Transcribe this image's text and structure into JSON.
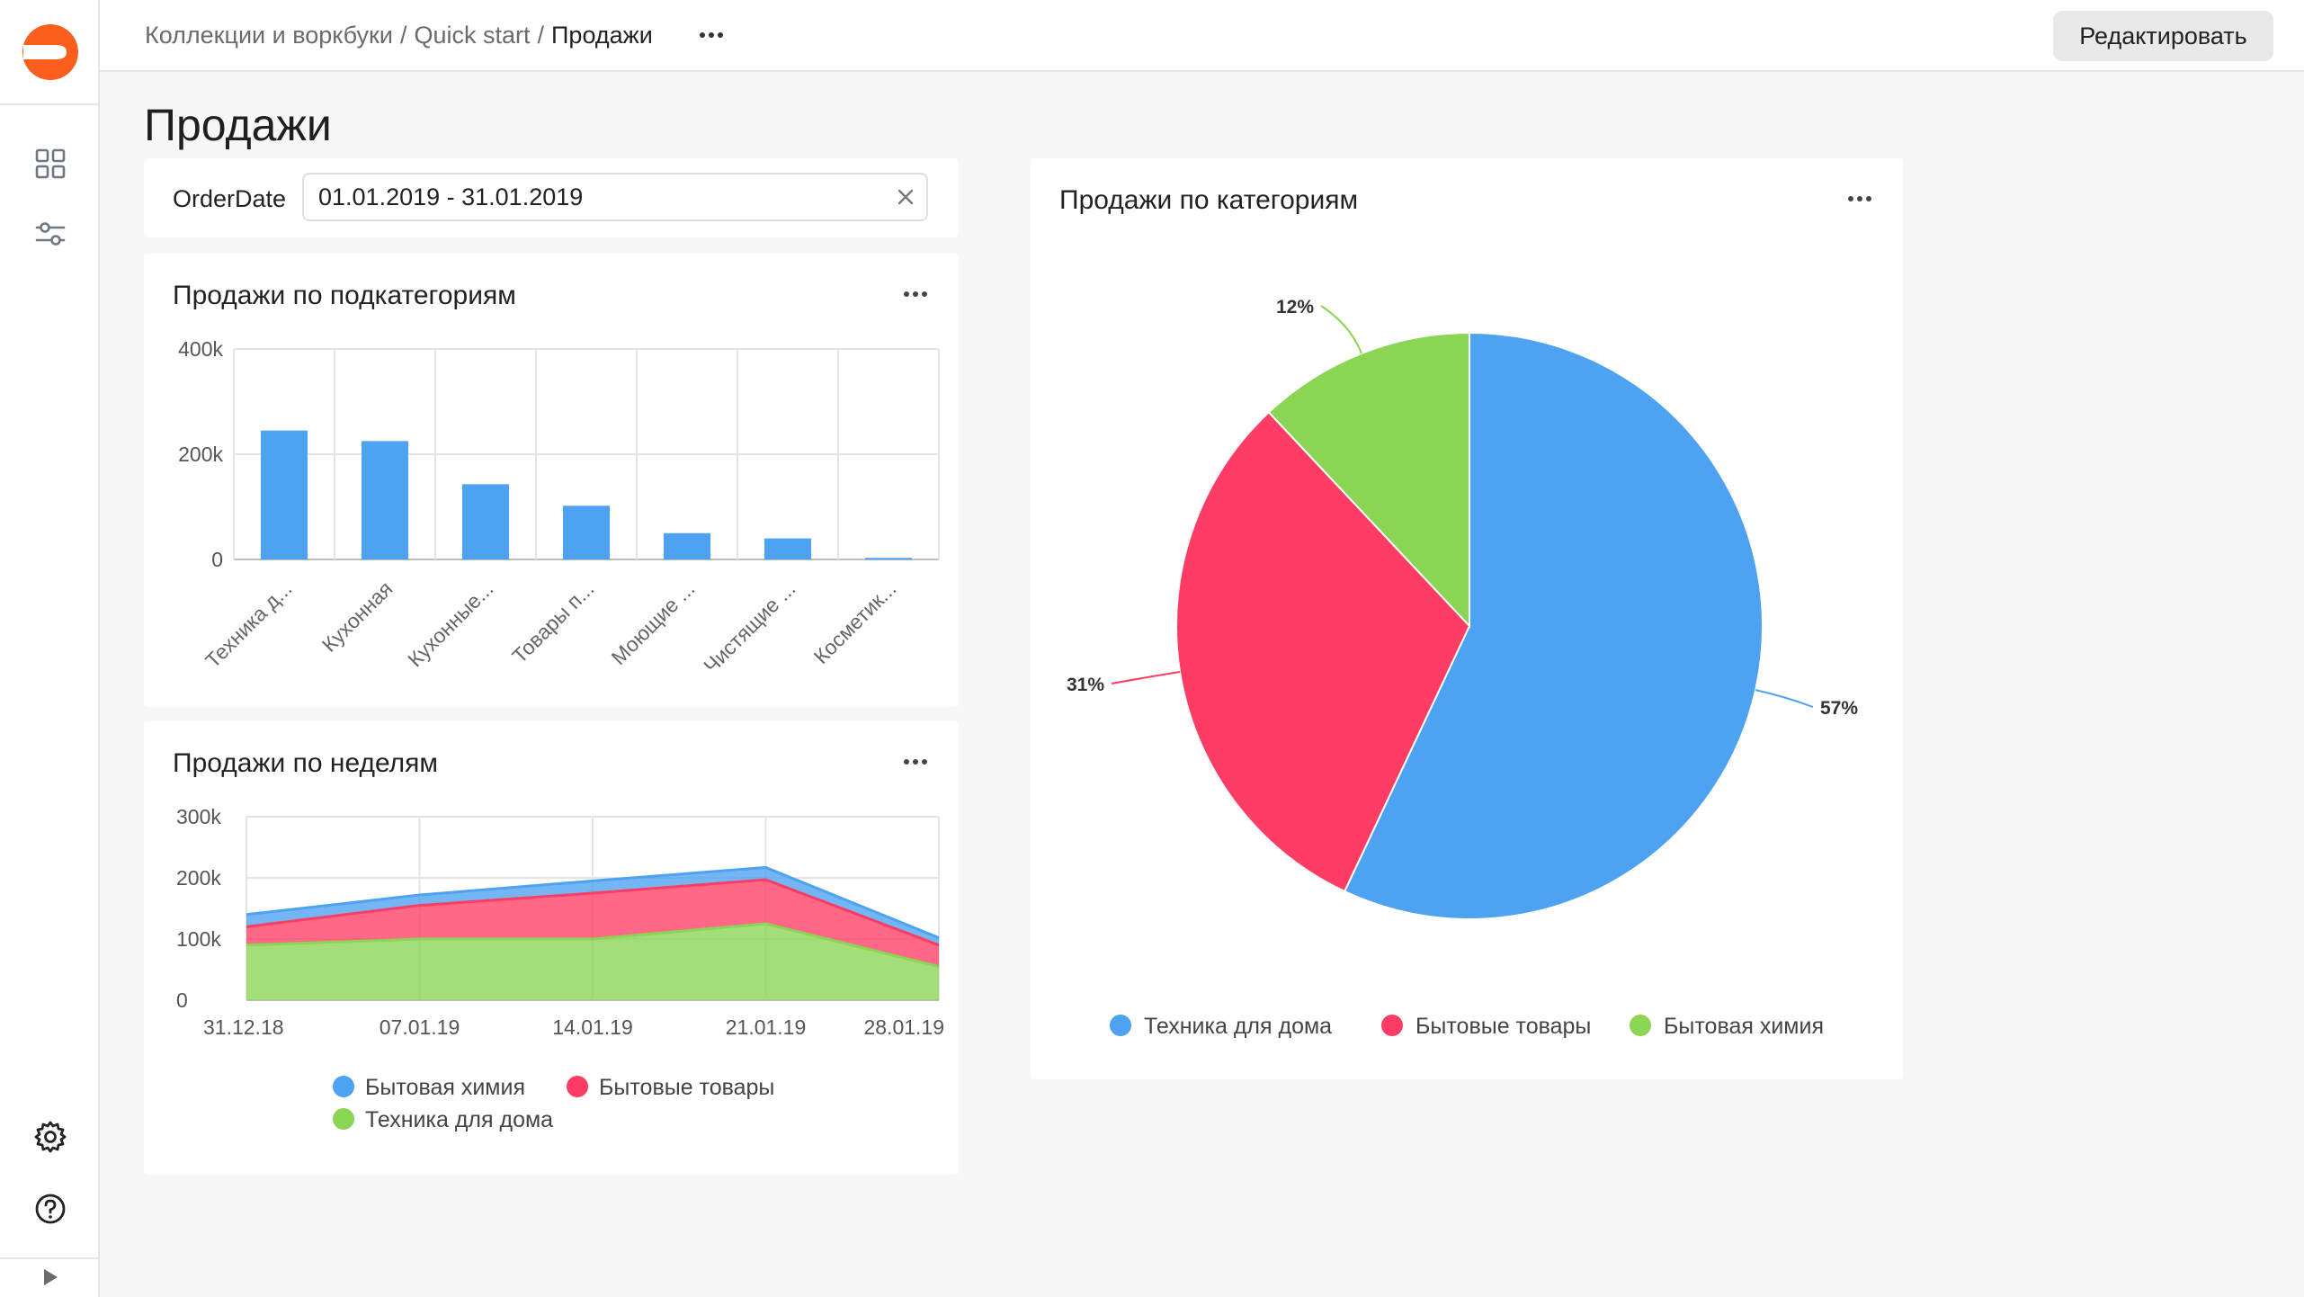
{
  "breadcrumb": {
    "items": [
      "Коллекции и воркбуки",
      "Quick start"
    ],
    "current": "Продажи"
  },
  "header": {
    "edit_label": "Редактировать"
  },
  "page": {
    "title": "Продажи"
  },
  "filter": {
    "label": "OrderDate",
    "value": "01.01.2019 - 31.01.2019"
  },
  "icons": {
    "logo": "datalens-logo",
    "dashboards": "grid-icon",
    "connections": "sliders-icon",
    "settings": "gear-icon",
    "help": "help-icon",
    "collapse": "play-icon",
    "menu": "ellipsis-icon",
    "clear": "close-icon"
  },
  "colors": {
    "blue": "#4da2f1",
    "red": "#ff3d64",
    "green": "#8ad554",
    "logo": "#fc5e1e"
  },
  "charts": {
    "subcategories": {
      "title": "Продажи по подкатегориям",
      "chart_data": {
        "type": "bar",
        "categories": [
          "Техника д...",
          "Кухонная",
          "Кухонные...",
          "Товары п...",
          "Моющие ...",
          "Чистящие ...",
          "Косметик..."
        ],
        "values": [
          245000,
          225000,
          143000,
          102000,
          50000,
          40000,
          3000
        ],
        "ylim": [
          0,
          400000
        ],
        "yticks": [
          "0",
          "200k",
          "400k"
        ],
        "colors": [
          "#4da2f1"
        ],
        "grid": true
      }
    },
    "weeks": {
      "title": "Продажи по неделям",
      "chart_data": {
        "type": "area",
        "stacked": true,
        "x": [
          "31.12.18",
          "07.01.19",
          "14.01.19",
          "21.01.19",
          "28.01.19"
        ],
        "series": [
          {
            "name": "Техника для дома",
            "color": "#8ad554",
            "values": [
              90000,
              100000,
              100000,
              125000,
              55000
            ]
          },
          {
            "name": "Бытовые товары",
            "color": "#ff3d64",
            "values": [
              30000,
              55000,
              75000,
              72000,
              35000
            ]
          },
          {
            "name": "Бытовая химия",
            "color": "#4da2f1",
            "values": [
              20000,
              17000,
              20000,
              20000,
              12000
            ]
          }
        ],
        "legend_order": [
          "Бытовая химия",
          "Бытовые товары",
          "Техника для дома"
        ],
        "ylim": [
          0,
          300000
        ],
        "yticks": [
          "0",
          "100k",
          "200k",
          "300k"
        ],
        "legend": "bottom",
        "grid": true
      }
    },
    "categories": {
      "title": "Продажи по категориям",
      "chart_data": {
        "type": "pie",
        "labels": [
          "Техника для дома",
          "Бытовые товары",
          "Бытовая химия"
        ],
        "values": [
          57,
          31,
          12
        ],
        "value_labels": [
          "57%",
          "31%",
          "12%"
        ],
        "colors": [
          "#4da2f1",
          "#ff3d64",
          "#8ad554"
        ],
        "legend": "bottom"
      }
    }
  }
}
